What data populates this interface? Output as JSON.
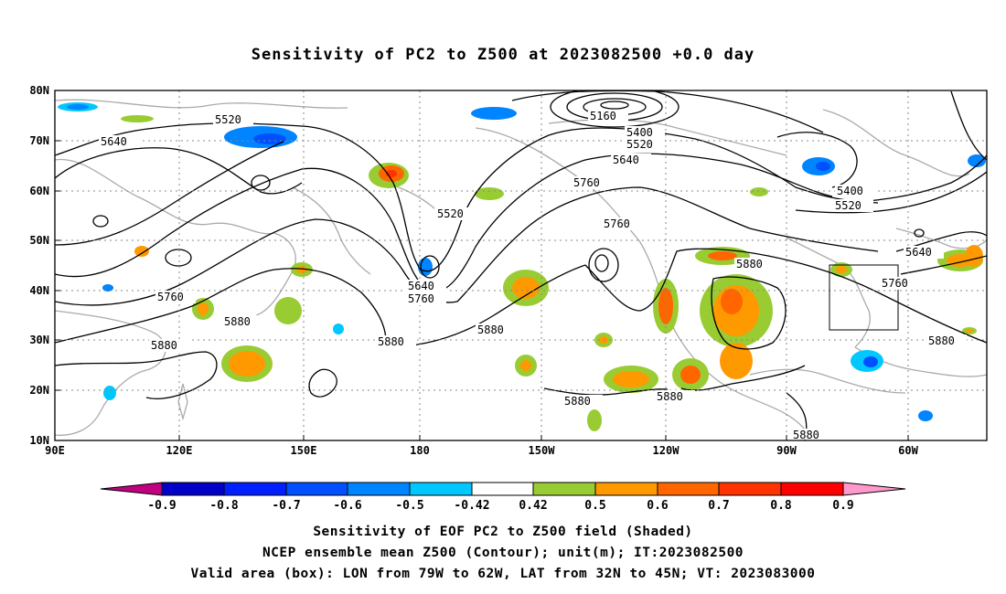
{
  "title": "Sensitivity of PC2 to Z500 at 2023082500 +0.0 day",
  "map": {
    "lat_labels": [
      "80N",
      "70N",
      "60N",
      "50N",
      "40N",
      "30N",
      "20N",
      "10N"
    ],
    "lon_labels": [
      "90E",
      "120E",
      "150E",
      "180",
      "150W",
      "120W",
      "90W",
      "60W"
    ],
    "lat_range": [
      10,
      80
    ],
    "lon_range": [
      "90E",
      "45W"
    ],
    "grid": "dotted",
    "valid_box": {
      "lon": [
        "79W",
        "62W"
      ],
      "lat": [
        "32N",
        "45N"
      ]
    },
    "contour_labels": [
      "5520",
      "5640",
      "5160",
      "5400",
      "5520",
      "5640",
      "5760",
      "5520",
      "5760",
      "5400",
      "5520",
      "5640",
      "5760",
      "5640",
      "5760",
      "5880",
      "5760",
      "5880",
      "5880",
      "5880",
      "5880",
      "5880",
      "5880",
      "5880",
      "5880"
    ],
    "colors": {
      "contour": "#000000",
      "coastline": "#aaaaaa"
    }
  },
  "colorbar": {
    "ticks": [
      "-0.9",
      "-0.8",
      "-0.7",
      "-0.6",
      "-0.5",
      "-0.42",
      "0.42",
      "0.5",
      "0.6",
      "0.7",
      "0.8",
      "0.9"
    ],
    "colors": [
      "#c0007f",
      "#0000c8",
      "#0020ff",
      "#0050ff",
      "#0084ff",
      "#00c8ff",
      "#ffffff",
      "#99cc33",
      "#ff9900",
      "#ff6600",
      "#ff3300",
      "#ff0000",
      "#ff99cc"
    ]
  },
  "footer": {
    "line1": "Sensitivity of EOF PC2 to Z500 field (Shaded)",
    "line2": "NCEP ensemble mean Z500 (Contour); unit(m); IT:2023082500",
    "line3": "Valid area (box): LON from 79W to 62W, LAT from 32N to 45N; VT: 2023083000"
  }
}
